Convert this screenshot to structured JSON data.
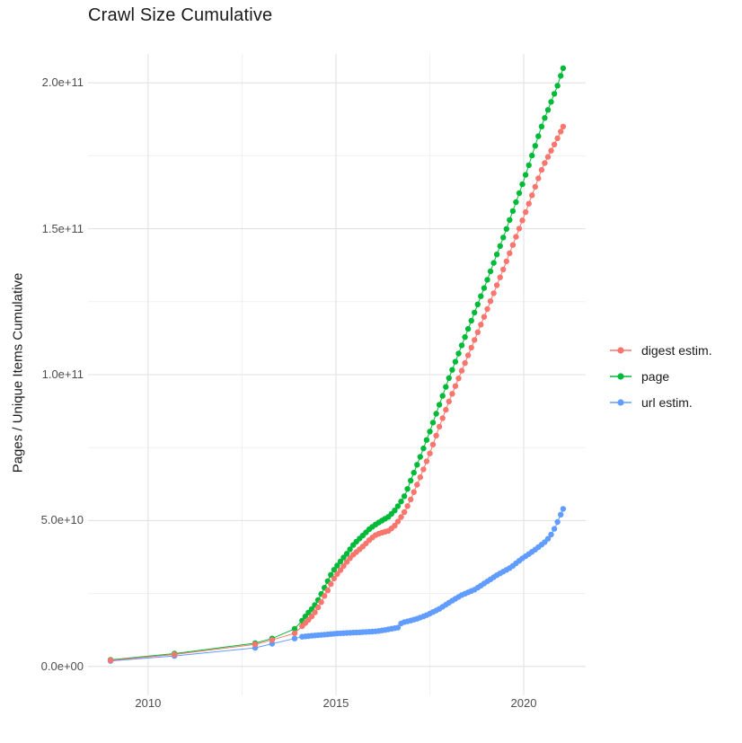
{
  "chart_data": {
    "type": "scatter",
    "title": "Crawl Size Cumulative",
    "xlabel": "",
    "ylabel": "Pages / Unique Items Cumulative",
    "unit": "1e9 (values below are billions of pages / items)",
    "grid": true,
    "legend_position": "right",
    "xlim": [
      2008.4,
      2021.65
    ],
    "ylim_e9": [
      -9.9,
      209.9
    ],
    "x_ticks": [
      {
        "value": 2010,
        "label": "2010"
      },
      {
        "value": 2015,
        "label": "2015"
      },
      {
        "value": 2020,
        "label": "2020"
      }
    ],
    "x_minor": [
      2012.5,
      2017.5
    ],
    "y_ticks": [
      {
        "value_e9": 0,
        "label": "0.0e+00"
      },
      {
        "value_e9": 50,
        "label": "5.0e+10"
      },
      {
        "value_e9": 100,
        "label": "1.0e+11"
      },
      {
        "value_e9": 150,
        "label": "1.5e+11"
      },
      {
        "value_e9": 200,
        "label": "2.0e+11"
      }
    ],
    "y_minor_e9": [
      25,
      75,
      125,
      175
    ],
    "series": [
      {
        "name": "digest-estim",
        "label": "digest estim.",
        "color": "#F8766D",
        "dense_start": 2014.1,
        "dot_step_years": 0.085,
        "points": [
          [
            2009.0,
            2.1
          ],
          [
            2010.7,
            4.1
          ],
          [
            2012.85,
            7.6
          ],
          [
            2013.3,
            9.1
          ],
          [
            2013.9,
            11.4
          ],
          [
            2014.1,
            13.8
          ],
          [
            2014.25,
            15.7
          ],
          [
            2014.4,
            17.8
          ],
          [
            2014.5,
            19.7
          ],
          [
            2014.6,
            21.8
          ],
          [
            2014.7,
            24.3
          ],
          [
            2014.8,
            26.5
          ],
          [
            2014.9,
            29.2
          ],
          [
            2015.0,
            31.1
          ],
          [
            2015.15,
            33.5
          ],
          [
            2015.3,
            36.0
          ],
          [
            2015.45,
            38.2
          ],
          [
            2015.6,
            39.8
          ],
          [
            2015.75,
            41.5
          ],
          [
            2015.9,
            43.5
          ],
          [
            2016.05,
            45.0
          ],
          [
            2016.2,
            45.8
          ],
          [
            2016.4,
            46.5
          ],
          [
            2016.55,
            48.0
          ],
          [
            2016.7,
            50.5
          ],
          [
            2016.85,
            53.5
          ],
          [
            2017.0,
            57.5
          ],
          [
            2017.25,
            65.0
          ],
          [
            2017.5,
            73.0
          ],
          [
            2017.75,
            82.0
          ],
          [
            2018.0,
            90.5
          ],
          [
            2018.5,
            106.0
          ],
          [
            2019.0,
            121.5
          ],
          [
            2019.5,
            137.5
          ],
          [
            2020.0,
            154.0
          ],
          [
            2020.5,
            171.0
          ],
          [
            2020.9,
            181.0
          ],
          [
            2021.05,
            185.0
          ]
        ]
      },
      {
        "name": "page",
        "label": "page",
        "color": "#00BA38",
        "dense_start": 2014.1,
        "dot_step_years": 0.085,
        "points": [
          [
            2009.0,
            2.3
          ],
          [
            2010.7,
            4.4
          ],
          [
            2012.85,
            8.0
          ],
          [
            2013.3,
            9.6
          ],
          [
            2013.9,
            12.9
          ],
          [
            2014.1,
            15.7
          ],
          [
            2014.25,
            18.2
          ],
          [
            2014.4,
            20.3
          ],
          [
            2014.5,
            22.2
          ],
          [
            2014.6,
            24.6
          ],
          [
            2014.7,
            27.1
          ],
          [
            2014.8,
            29.8
          ],
          [
            2014.9,
            32.3
          ],
          [
            2015.0,
            34.0
          ],
          [
            2015.15,
            36.5
          ],
          [
            2015.3,
            38.8
          ],
          [
            2015.45,
            41.5
          ],
          [
            2015.6,
            43.5
          ],
          [
            2015.75,
            45.3
          ],
          [
            2015.9,
            47.2
          ],
          [
            2016.05,
            48.6
          ],
          [
            2016.2,
            49.8
          ],
          [
            2016.4,
            51.3
          ],
          [
            2016.55,
            53.2
          ],
          [
            2016.7,
            55.8
          ],
          [
            2016.85,
            59.0
          ],
          [
            2017.0,
            64.0
          ],
          [
            2017.25,
            72.0
          ],
          [
            2017.5,
            80.5
          ],
          [
            2017.75,
            89.5
          ],
          [
            2018.0,
            98.5
          ],
          [
            2018.5,
            115.0
          ],
          [
            2019.0,
            131.5
          ],
          [
            2019.5,
            148.5
          ],
          [
            2020.0,
            166.5
          ],
          [
            2020.5,
            186.0
          ],
          [
            2020.9,
            199.0
          ],
          [
            2021.05,
            205.0
          ]
        ]
      },
      {
        "name": "url-estim",
        "label": "url estim.",
        "color": "#619CFF",
        "dense_start": 2014.1,
        "dot_step_years": 0.085,
        "points": [
          [
            2009.0,
            1.9
          ],
          [
            2010.7,
            3.6
          ],
          [
            2012.85,
            6.4
          ],
          [
            2013.3,
            7.8
          ],
          [
            2013.9,
            9.6
          ],
          [
            2014.1,
            10.2
          ],
          [
            2014.4,
            10.6
          ],
          [
            2014.7,
            10.9
          ],
          [
            2015.0,
            11.3
          ],
          [
            2015.3,
            11.5
          ],
          [
            2015.6,
            11.7
          ],
          [
            2015.9,
            11.9
          ],
          [
            2016.1,
            12.1
          ],
          [
            2016.3,
            12.5
          ],
          [
            2016.5,
            13.0
          ],
          [
            2016.65,
            13.3
          ],
          [
            2016.75,
            15.0
          ],
          [
            2016.95,
            15.6
          ],
          [
            2017.15,
            16.3
          ],
          [
            2017.4,
            17.5
          ],
          [
            2017.75,
            19.7
          ],
          [
            2018.05,
            22.2
          ],
          [
            2018.35,
            24.5
          ],
          [
            2018.7,
            26.4
          ],
          [
            2019.0,
            28.9
          ],
          [
            2019.3,
            31.4
          ],
          [
            2019.65,
            33.9
          ],
          [
            2019.95,
            36.9
          ],
          [
            2020.3,
            40.0
          ],
          [
            2020.55,
            42.5
          ],
          [
            2020.7,
            44.5
          ],
          [
            2020.85,
            48.0
          ],
          [
            2021.05,
            54.0
          ]
        ]
      }
    ],
    "legend_order": [
      "digest estim.",
      "page",
      "url estim."
    ]
  },
  "style": {
    "grid_major_color": "#e2e2e2",
    "grid_minor_color": "#f0f0f0",
    "background": "#ffffff"
  }
}
